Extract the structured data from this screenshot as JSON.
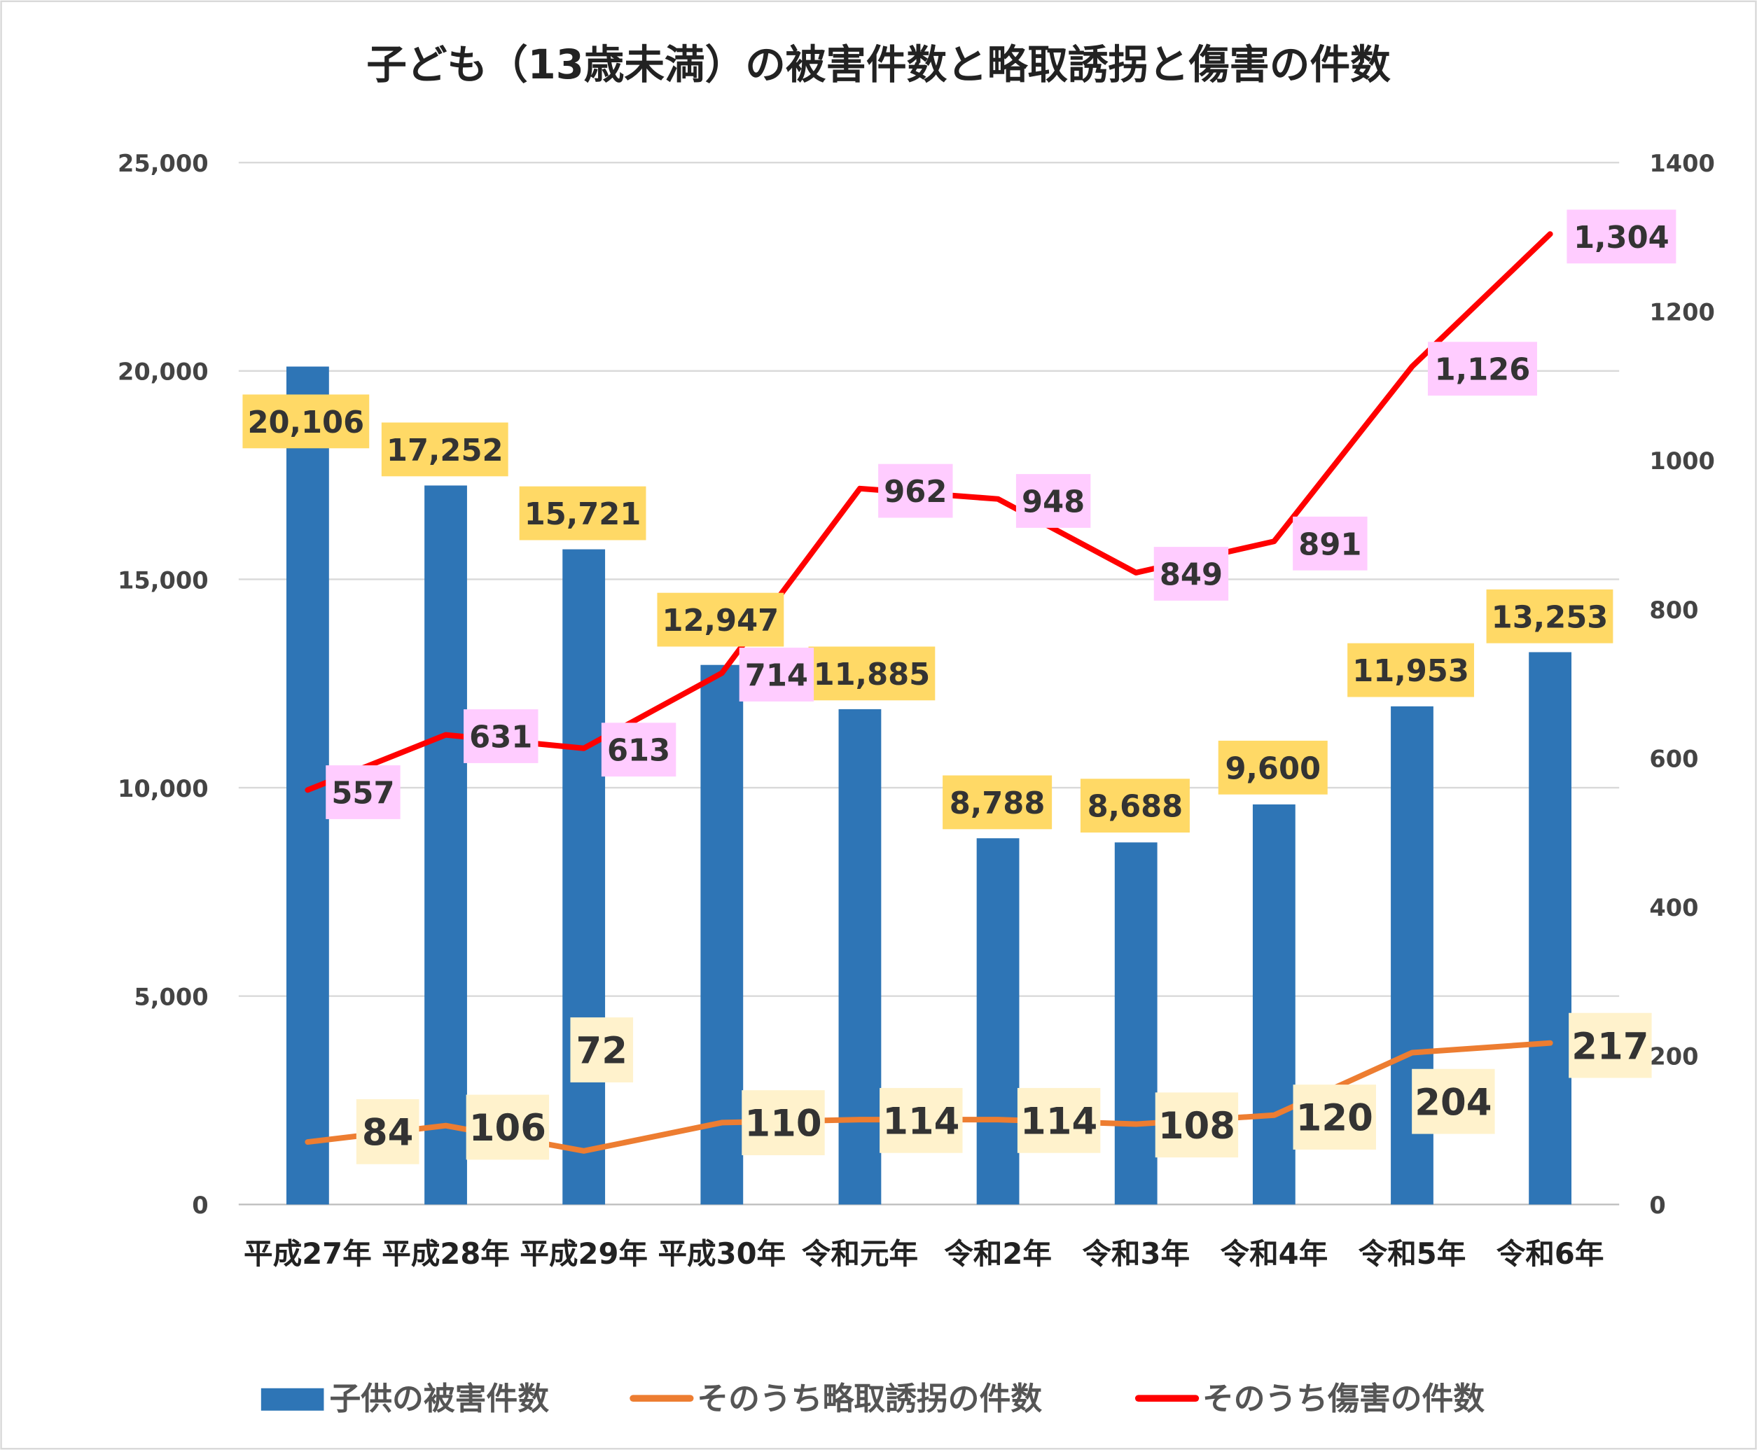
{
  "chart_data": {
    "type": "bar+line",
    "title": "子ども（13歳未満）の被害件数と略取誘拐と傷害の件数",
    "categories": [
      "平成27年",
      "平成28年",
      "平成29年",
      "平成30年",
      "令和元年",
      "令和2年",
      "令和3年",
      "令和4年",
      "令和5年",
      "令和6年"
    ],
    "y_left": {
      "range": [
        0,
        25000
      ],
      "ticks": [
        "0",
        "5,000",
        "10,000",
        "15,000",
        "20,000",
        "25,000"
      ]
    },
    "y_right": {
      "range": [
        0,
        1400
      ],
      "ticks": [
        "0",
        "200",
        "400",
        "600",
        "800",
        "1000",
        "1200",
        "1400"
      ]
    },
    "grid": true,
    "legend_position": "bottom",
    "series": [
      {
        "name": "子供の被害件数",
        "type": "bar",
        "axis": "left",
        "color": "#2E75B6",
        "label_bg": "#FFD966",
        "values": [
          20106,
          17252,
          15721,
          12947,
          11885,
          8788,
          8688,
          9600,
          11953,
          13253
        ],
        "labels": [
          "20,106",
          "17,252",
          "15,721",
          "12,947",
          "11,885",
          "8,788",
          "8,688",
          "9,600",
          "11,953",
          "13,253"
        ]
      },
      {
        "name": "そのうち略取誘拐の件数",
        "type": "line",
        "axis": "right",
        "color": "#ED7D31",
        "label_bg": "#FFF2CC",
        "values": [
          84,
          106,
          72,
          110,
          114,
          114,
          108,
          120,
          204,
          217
        ],
        "labels": [
          "84",
          "106",
          "72",
          "110",
          "114",
          "114",
          "108",
          "120",
          "204",
          "217"
        ]
      },
      {
        "name": "そのうち傷害の件数",
        "type": "line",
        "axis": "right",
        "color": "#FF0000",
        "label_bg": "#FFCCFF",
        "values": [
          557,
          631,
          613,
          714,
          962,
          948,
          849,
          891,
          1126,
          1304
        ],
        "labels": [
          "557",
          "631",
          "613",
          "714",
          "962",
          "948",
          "849",
          "891",
          "1,126",
          "1,304"
        ]
      }
    ]
  }
}
